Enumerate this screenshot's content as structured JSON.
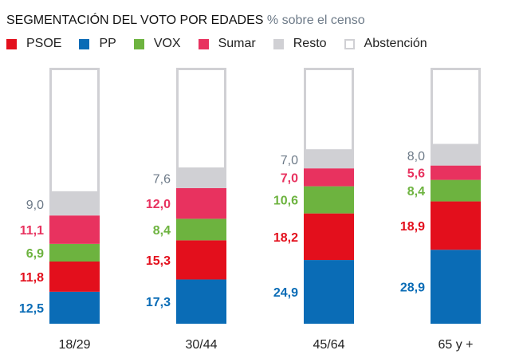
{
  "chart_data": {
    "type": "bar",
    "stacked": true,
    "title": "SEGMENTACIÓN DEL VOTO POR EDADES",
    "subtitle": "% sobre el censo",
    "categories": [
      "18/29",
      "30/44",
      "45/64",
      "65 y +"
    ],
    "series": [
      {
        "name": "PP",
        "color": "#0a6cb6",
        "values": [
          12.5,
          17.3,
          24.9,
          28.9
        ],
        "labels": [
          "12,5",
          "17,3",
          "24,9",
          "28,9"
        ],
        "label_color": "#0a6cb6"
      },
      {
        "name": "PSOE",
        "color": "#e30f1c",
        "values": [
          11.8,
          15.3,
          18.2,
          18.9
        ],
        "labels": [
          "11,8",
          "15,3",
          "18,2",
          "18,9"
        ],
        "label_color": "#e30f1c"
      },
      {
        "name": "VOX",
        "color": "#6db33f",
        "values": [
          6.9,
          8.4,
          10.6,
          8.4
        ],
        "labels": [
          "6,9",
          "8,4",
          "10,6",
          "8,4"
        ],
        "label_color": "#6db33f"
      },
      {
        "name": "Sumar",
        "color": "#e8325f",
        "values": [
          11.1,
          12.0,
          7.0,
          5.6
        ],
        "labels": [
          "11,1",
          "12,0",
          "7,0",
          "5,6"
        ],
        "label_color": "#e8325f"
      },
      {
        "name": "Resto",
        "color": "#d0d0d4",
        "values": [
          9.0,
          7.6,
          7.0,
          8.0
        ],
        "labels": [
          "9,0",
          "7,6",
          "7,0",
          "8,0"
        ],
        "label_color": "#6d7a88"
      },
      {
        "name": "Abstención",
        "color": "#ffffff",
        "values": [
          48.7,
          39.4,
          32.3,
          30.2
        ],
        "labels": [
          "",
          "",
          "",
          ""
        ],
        "label_color": "#6d7a88"
      }
    ],
    "legend": [
      {
        "name": "PSOE",
        "color": "#e30f1c"
      },
      {
        "name": "PP",
        "color": "#0a6cb6"
      },
      {
        "name": "VOX",
        "color": "#6db33f"
      },
      {
        "name": "Sumar",
        "color": "#e8325f"
      },
      {
        "name": "Resto",
        "color": "#d0d0d4"
      },
      {
        "name": "Abstención",
        "color": "#ffffff"
      }
    ],
    "legend_position": "top-left",
    "ylim": [
      0,
      100
    ],
    "grid": false
  }
}
